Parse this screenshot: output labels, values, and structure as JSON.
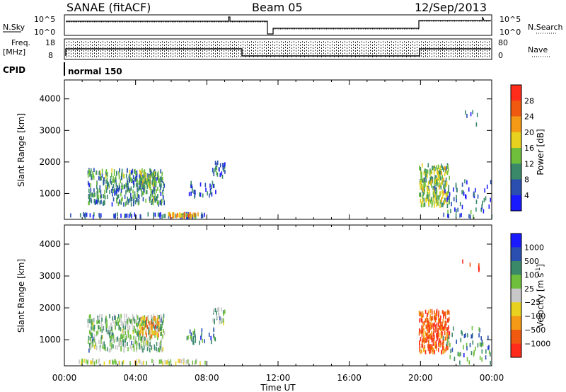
{
  "header": {
    "station": "SANAE (fitACF)",
    "beam": "Beam 05",
    "date": "12/Sep/2013"
  },
  "panels": {
    "nsky_label": "N.Sky",
    "nsearch_label": "N.Search",
    "nsky_ticks": [
      "10^5",
      "10^0"
    ],
    "nsearch_ticks": [
      "10^5",
      "10^0"
    ],
    "freq_label_1": "Freq.",
    "freq_label_2": "[MHz]",
    "freq_ticks": [
      "18",
      "8"
    ],
    "nave_label": "Nave",
    "nave_ticks": [
      "80",
      "0"
    ],
    "cpid_label": "CPID",
    "cpid_value": "normal 150"
  },
  "chart_data": [
    {
      "type": "heatmap",
      "name": "power",
      "ylabel": "Slant Range [km]",
      "xlabel": "Time UT",
      "x_ticks": [
        "00:00",
        "04:00",
        "08:00",
        "12:00",
        "16:00",
        "20:00",
        "00:00"
      ],
      "xlim_hours": [
        0,
        24
      ],
      "ylim_km": [
        180,
        4600
      ],
      "y_ticks": [
        1000,
        2000,
        3000,
        4000
      ],
      "colorbar_label": "Power [dB]",
      "colorbar_ticks": [
        "4",
        "8",
        "12",
        "16",
        "20",
        "24",
        "28"
      ],
      "colors": [
        "#1a1aff",
        "#2a4fb0",
        "#3a8a6a",
        "#6fbf3c",
        "#e8d21f",
        "#f59a16",
        "#ef5a10",
        "#ff2b1b"
      ],
      "clusters": [
        {
          "t": [
            1.3,
            5.6
          ],
          "r": [
            650,
            1750
          ],
          "n": 420,
          "tone": 2
        },
        {
          "t": [
            4.2,
            5.1
          ],
          "r": [
            1250,
            1700
          ],
          "n": 60,
          "tone": 3
        },
        {
          "t": [
            6.8,
            8.5
          ],
          "r": [
            900,
            1350
          ],
          "n": 30,
          "tone": 1
        },
        {
          "t": [
            8.3,
            9.0
          ],
          "r": [
            1500,
            2000
          ],
          "n": 25,
          "tone": 1
        },
        {
          "t": [
            0.3,
            8.0
          ],
          "r": [
            250,
            350
          ],
          "n": 70,
          "tone": 1
        },
        {
          "t": [
            5.8,
            7.5
          ],
          "r": [
            250,
            350
          ],
          "n": 40,
          "tone": 5
        },
        {
          "t": [
            19.9,
            21.6
          ],
          "r": [
            600,
            1900
          ],
          "n": 260,
          "tone": 3
        },
        {
          "t": [
            21.2,
            24.0
          ],
          "r": [
            250,
            1400
          ],
          "n": 60,
          "tone": 1
        },
        {
          "t": [
            22.2,
            23.3
          ],
          "r": [
            3100,
            3600
          ],
          "n": 6,
          "tone": 1
        }
      ]
    },
    {
      "type": "heatmap",
      "name": "velocity",
      "ylabel": "Slant Range [km]",
      "xlabel": "Time UT",
      "x_ticks": [
        "00:00",
        "04:00",
        "08:00",
        "12:00",
        "16:00",
        "20:00",
        "00:00"
      ],
      "xlim_hours": [
        0,
        24
      ],
      "ylim_km": [
        180,
        4600
      ],
      "y_ticks": [
        1000,
        2000,
        3000,
        4000
      ],
      "colorbar_label": "Velocity [m s",
      "colorbar_label_sup": "-1",
      "colorbar_label_close": "]",
      "colorbar_ticks": [
        "1000",
        "500",
        "100",
        "25",
        "−25",
        "−100",
        "−500",
        "−1000"
      ],
      "colors": [
        "#1a1aff",
        "#2a4fb0",
        "#3a8a6a",
        "#6fbf3c",
        "#c8c8c8",
        "#e8d21f",
        "#f59a16",
        "#ef5a10",
        "#ff2b1b"
      ],
      "clusters": [
        {
          "t": [
            1.3,
            5.6
          ],
          "r": [
            650,
            1750
          ],
          "n": 420,
          "tone": 3
        },
        {
          "t": [
            4.2,
            5.3
          ],
          "r": [
            1100,
            1700
          ],
          "n": 60,
          "tone": 6
        },
        {
          "t": [
            6.8,
            8.5
          ],
          "r": [
            900,
            1350
          ],
          "n": 30,
          "tone": 2
        },
        {
          "t": [
            8.3,
            9.0
          ],
          "r": [
            1500,
            2000
          ],
          "n": 25,
          "tone": 3
        },
        {
          "t": [
            0.3,
            8.0
          ],
          "r": [
            250,
            350
          ],
          "n": 70,
          "tone": 4
        },
        {
          "t": [
            19.9,
            21.6
          ],
          "r": [
            600,
            1900
          ],
          "n": 260,
          "tone": 7
        },
        {
          "t": [
            21.2,
            24.0
          ],
          "r": [
            250,
            1400
          ],
          "n": 60,
          "tone": 2
        },
        {
          "t": [
            22.2,
            23.3
          ],
          "r": [
            3100,
            3600
          ],
          "n": 6,
          "tone": 8
        }
      ]
    }
  ]
}
